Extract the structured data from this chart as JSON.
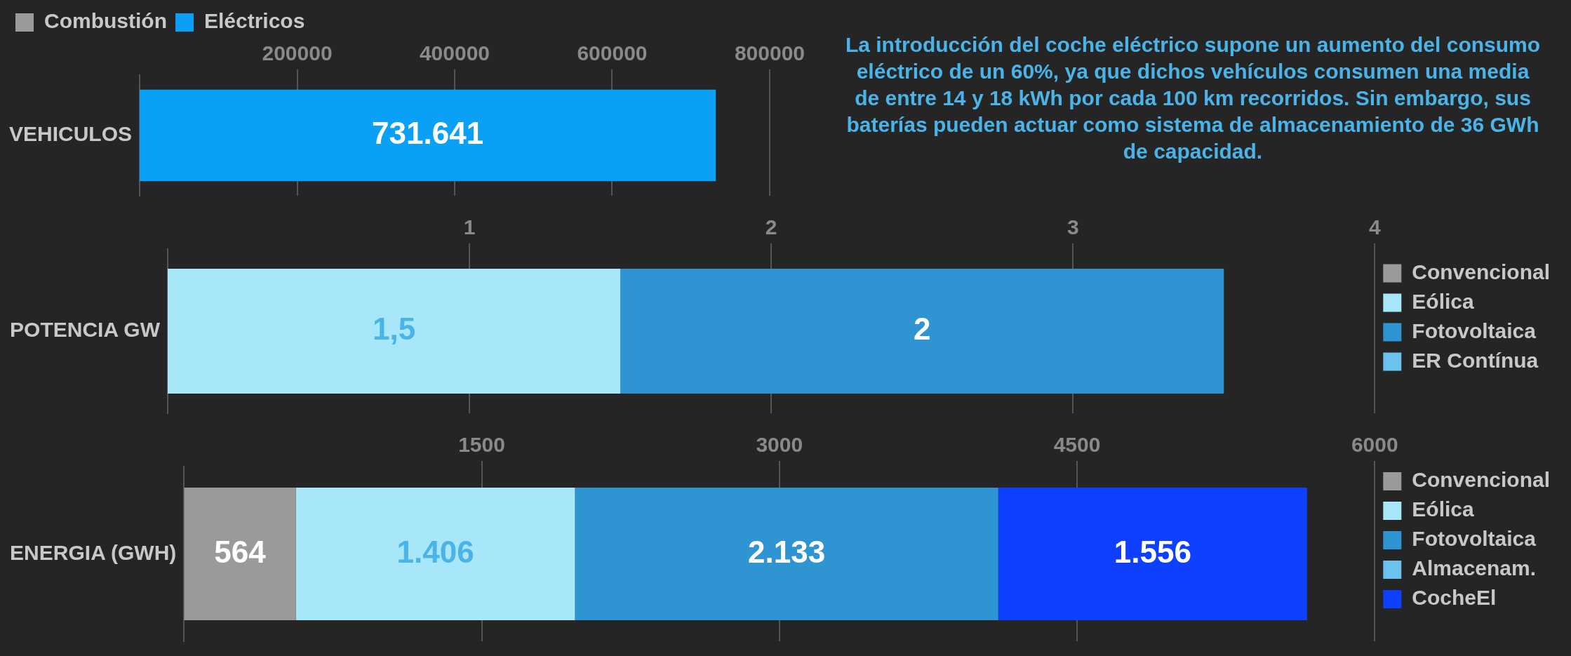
{
  "chart_data": [
    {
      "type": "bar",
      "orientation": "horizontal",
      "stacked": true,
      "categories": [
        "VEHICULOS"
      ],
      "series": [
        {
          "name": "Combustión",
          "color": "#9a9a9a",
          "values": [
            null
          ]
        },
        {
          "name": "Eléctricos",
          "color": "#0aa0f5",
          "values": [
            731641
          ],
          "value_labels": [
            "731.641"
          ]
        }
      ],
      "xlim": [
        0,
        800000
      ],
      "xticks": [
        200000,
        400000,
        600000,
        800000
      ],
      "grid": "x",
      "legend": "top left",
      "annotations": [
        "La introducción del coche eléctrico supone un aumento del consumo eléctrico de un 60%, ya que dichos vehículos consumen una media de entre 14 y 18 kWh por cada 100 km recorridos. Sin embargo, sus baterías pueden actuar como sistema de almacenamiento de 36 GWh de capacidad."
      ]
    },
    {
      "type": "bar",
      "orientation": "horizontal",
      "stacked": true,
      "categories": [
        "POTENCIA GW"
      ],
      "series": [
        {
          "name": "Convencional",
          "color": "#9a9a9a",
          "values": [
            null
          ]
        },
        {
          "name": "Eólica",
          "color": "#a8e6fa",
          "values": [
            1.5
          ],
          "value_labels": [
            "1,5"
          ]
        },
        {
          "name": "Fotovoltaica",
          "color": "#2f95d2",
          "values": [
            2
          ],
          "value_labels": [
            "2"
          ]
        },
        {
          "name": "ER Contínua",
          "color": "#6cc2ee",
          "values": [
            null
          ]
        }
      ],
      "xlim": [
        0,
        4
      ],
      "xticks": [
        1,
        2,
        3,
        4
      ],
      "grid": "x",
      "legend": "right"
    },
    {
      "type": "bar",
      "orientation": "horizontal",
      "stacked": true,
      "categories": [
        "ENERGIA (GWH)"
      ],
      "series": [
        {
          "name": "Convencional",
          "color": "#9a9a9a",
          "values": [
            564
          ],
          "value_labels": [
            "564"
          ]
        },
        {
          "name": "Eólica",
          "color": "#a8e6fa",
          "values": [
            1406
          ],
          "value_labels": [
            "1.406"
          ]
        },
        {
          "name": "Fotovoltaica",
          "color": "#2f95d2",
          "values": [
            2133
          ],
          "value_labels": [
            "2.133"
          ]
        },
        {
          "name": "Almacenam.",
          "color": "#6cc2ee",
          "values": [
            null
          ]
        },
        {
          "name": "CocheEl",
          "color": "#1040ff",
          "values": [
            1556
          ],
          "value_labels": [
            "1.556"
          ]
        }
      ],
      "xlim": [
        0,
        6000
      ],
      "xticks": [
        1500,
        3000,
        4500,
        6000
      ],
      "grid": "x",
      "legend": "right"
    }
  ]
}
